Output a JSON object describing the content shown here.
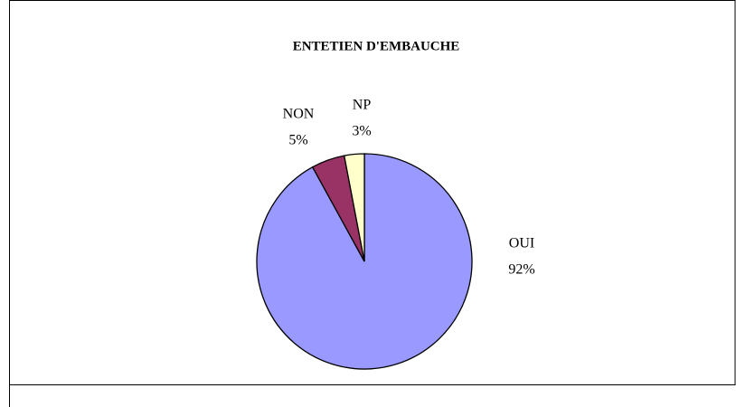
{
  "chart_data": {
    "type": "pie",
    "title": "ENTETIEN D'EMBAUCHE",
    "categories": [
      "OUI",
      "NON",
      "NP"
    ],
    "values": [
      92,
      5,
      3
    ],
    "value_labels": [
      "92%",
      "5%",
      "3%"
    ],
    "colors": [
      "#9999ff",
      "#993366",
      "#ffffcc"
    ]
  }
}
